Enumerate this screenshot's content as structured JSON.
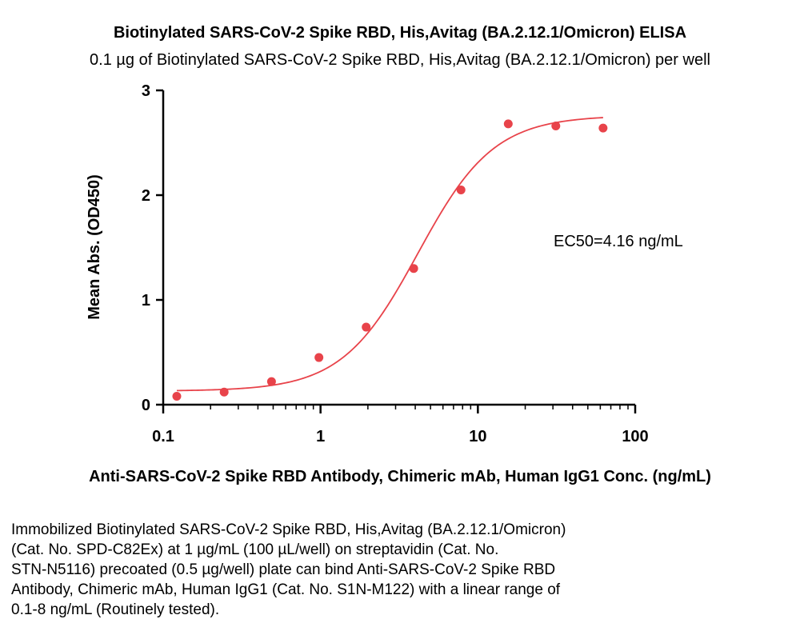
{
  "chart_data": {
    "type": "scatter",
    "title": "Biotinylated SARS-CoV-2 Spike RBD, His,Avitag (BA.2.12.1/Omicron) ELISA",
    "subtitle": "0.1 µg of Biotinylated SARS-CoV-2 Spike RBD, His,Avitag (BA.2.12.1/Omicron) per well",
    "xlabel": "Anti-SARS-CoV-2 Spike RBD Antibody, Chimeric mAb, Human IgG1 Conc. (ng/mL)",
    "ylabel": "Mean Abs. (OD450)",
    "x_scale": "log",
    "xlim": [
      0.1,
      100
    ],
    "ylim": [
      0,
      3
    ],
    "x_ticks": [
      {
        "value": 0.1,
        "label": "0.1"
      },
      {
        "value": 1,
        "label": "1"
      },
      {
        "value": 10,
        "label": "10"
      },
      {
        "value": 100,
        "label": "100"
      }
    ],
    "y_ticks": [
      {
        "value": 0,
        "label": "0"
      },
      {
        "value": 1,
        "label": "1"
      },
      {
        "value": 2,
        "label": "2"
      },
      {
        "value": 3,
        "label": "3"
      }
    ],
    "grid": false,
    "color": "#e8434a",
    "series": [
      {
        "x": [
          0.122,
          0.244,
          0.488,
          0.977,
          1.95,
          3.91,
          7.81,
          15.6,
          31.3,
          62.5
        ],
        "y": [
          0.08,
          0.12,
          0.22,
          0.45,
          0.74,
          1.3,
          2.05,
          2.68,
          2.66,
          2.64
        ]
      }
    ],
    "fit": {
      "bottom": 0.13,
      "top": 2.76,
      "ec50": 4.16,
      "hill": 1.8
    },
    "annotation": "EC50=4.16 ng/mL"
  },
  "caption_lines": [
    "Immobilized Biotinylated SARS-CoV-2 Spike RBD, His,Avitag (BA.2.12.1/Omicron)",
    "(Cat. No. SPD-C82Ex) at 1 µg/mL (100 µL/well) on streptavidin (Cat. No.",
    "STN-N5116) precoated (0.5 µg/well) plate can bind Anti-SARS-CoV-2 Spike RBD",
    "Antibody, Chimeric mAb, Human IgG1 (Cat. No. S1N-M122) with a linear range of",
    "0.1-8 ng/mL (Routinely tested)."
  ]
}
